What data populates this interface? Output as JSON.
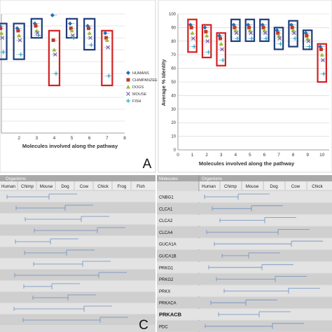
{
  "chart_data": [
    {
      "type": "scatter",
      "panel": "A",
      "xlabel": "Molecules involved along the pathway",
      "ylabel": "",
      "xlim": [
        0,
        8
      ],
      "ylim": [
        0,
        100
      ],
      "grid": true,
      "x_ticks": [
        "2",
        "3",
        "4",
        "5",
        "6",
        "7",
        "8"
      ],
      "legend": [
        "HUMANS",
        "CHIMPANZEE",
        "DOGS",
        "MOUSE",
        "FISH"
      ],
      "legend_placement": "right",
      "boxes": [
        {
          "x": 1,
          "low": 62,
          "high": 92,
          "color": "#1f3b7a"
        },
        {
          "x": 2,
          "low": 62,
          "high": 92,
          "color": "#1f3b7a"
        },
        {
          "x": 3,
          "low": 80,
          "high": 96,
          "color": "#1f3b7a"
        },
        {
          "x": 4,
          "low": 40,
          "high": 86,
          "color": "#d42020"
        },
        {
          "x": 5,
          "low": 80,
          "high": 96,
          "color": "#1f3b7a"
        },
        {
          "x": 6,
          "low": 70,
          "high": 96,
          "color": "#1f3b7a"
        },
        {
          "x": 7,
          "low": 40,
          "high": 86,
          "color": "#d42020"
        }
      ],
      "series": [
        {
          "name": "HUMANS",
          "color": "#1f6fb8",
          "values": [
            [
              1,
              90
            ],
            [
              2,
              88
            ],
            [
              3,
              92
            ],
            [
              4,
              99
            ],
            [
              5,
              92
            ],
            [
              6,
              90
            ],
            [
              7,
              84
            ]
          ]
        },
        {
          "name": "CHIMPANZEE",
          "color": "#c0392b",
          "values": [
            [
              1,
              88
            ],
            [
              2,
              86
            ],
            [
              3,
              90
            ],
            [
              4,
              78
            ],
            [
              5,
              88
            ],
            [
              6,
              88
            ],
            [
              7,
              80
            ]
          ]
        },
        {
          "name": "DOGS",
          "color": "#9bbb3c",
          "values": [
            [
              1,
              84
            ],
            [
              2,
              82
            ],
            [
              3,
              86
            ],
            [
              4,
              70
            ],
            [
              5,
              86
            ],
            [
              6,
              84
            ],
            [
              7,
              78
            ]
          ]
        },
        {
          "name": "MOUSE",
          "color": "#7f62a8",
          "values": [
            [
              1,
              80
            ],
            [
              2,
              78
            ],
            [
              3,
              84
            ],
            [
              4,
              66
            ],
            [
              5,
              82
            ],
            [
              6,
              80
            ],
            [
              7,
              72
            ]
          ]
        },
        {
          "name": "FISH",
          "color": "#31a6c4",
          "values": [
            [
              1,
              68
            ],
            [
              2,
              66
            ],
            [
              3,
              82
            ],
            [
              4,
              50
            ],
            [
              5,
              80
            ],
            [
              6,
              74
            ],
            [
              7,
              48
            ]
          ]
        }
      ],
      "label": "A"
    },
    {
      "type": "scatter",
      "panel": "B",
      "xlabel": "Molecules involved along the pathway",
      "ylabel": "Average % Identity",
      "xlim": [
        0,
        10
      ],
      "ylim": [
        0,
        100
      ],
      "grid": true,
      "y_ticks": [
        "0",
        "10",
        "20",
        "30",
        "40",
        "50",
        "60",
        "70",
        "80",
        "90",
        "100"
      ],
      "x_ticks": [
        "0",
        "1",
        "2",
        "3",
        "4",
        "5",
        "6",
        "7",
        "8",
        "9",
        "10"
      ],
      "boxes": [
        {
          "x": 1,
          "low": 72,
          "high": 96,
          "color": "#d42020"
        },
        {
          "x": 2,
          "low": 68,
          "high": 92,
          "color": "#d42020"
        },
        {
          "x": 3,
          "low": 62,
          "high": 86,
          "color": "#d42020"
        },
        {
          "x": 4,
          "low": 80,
          "high": 96,
          "color": "#1f3b7a"
        },
        {
          "x": 5,
          "low": 80,
          "high": 96,
          "color": "#1f3b7a"
        },
        {
          "x": 6,
          "low": 80,
          "high": 96,
          "color": "#1f3b7a"
        },
        {
          "x": 7,
          "low": 74,
          "high": 90,
          "color": "#1f3b7a"
        },
        {
          "x": 8,
          "low": 76,
          "high": 95,
          "color": "#1f3b7a"
        },
        {
          "x": 9,
          "low": 74,
          "high": 88,
          "color": "#1f3b7a"
        },
        {
          "x": 10,
          "low": 50,
          "high": 78,
          "color": "#d42020"
        }
      ],
      "series": [
        {
          "name": "HUMANS",
          "color": "#1f6fb8",
          "values": [
            [
              1,
              92
            ],
            [
              2,
              90
            ],
            [
              3,
              84
            ],
            [
              4,
              92
            ],
            [
              5,
              92
            ],
            [
              6,
              92
            ],
            [
              7,
              88
            ],
            [
              8,
              92
            ],
            [
              9,
              86
            ],
            [
              10,
              76
            ]
          ]
        },
        {
          "name": "CHIMPANZEE",
          "color": "#c0392b",
          "values": [
            [
              1,
              90
            ],
            [
              2,
              87
            ],
            [
              3,
              82
            ],
            [
              4,
              90
            ],
            [
              5,
              90
            ],
            [
              6,
              90
            ],
            [
              7,
              86
            ],
            [
              8,
              90
            ],
            [
              9,
              84
            ],
            [
              10,
              74
            ]
          ]
        },
        {
          "name": "DOGS",
          "color": "#9bbb3c",
          "values": [
            [
              1,
              86
            ],
            [
              2,
              84
            ],
            [
              3,
              78
            ],
            [
              4,
              88
            ],
            [
              5,
              88
            ],
            [
              6,
              88
            ],
            [
              7,
              84
            ],
            [
              8,
              88
            ],
            [
              9,
              82
            ],
            [
              10,
              70
            ]
          ]
        },
        {
          "name": "MOUSE",
          "color": "#7f62a8",
          "values": [
            [
              1,
              82
            ],
            [
              2,
              80
            ],
            [
              3,
              74
            ],
            [
              4,
              86
            ],
            [
              5,
              86
            ],
            [
              6,
              86
            ],
            [
              7,
              82
            ],
            [
              8,
              86
            ],
            [
              9,
              80
            ],
            [
              10,
              66
            ]
          ]
        },
        {
          "name": "FISH",
          "color": "#31a6c4",
          "values": [
            [
              1,
              76
            ],
            [
              2,
              72
            ],
            [
              3,
              66
            ],
            [
              4,
              82
            ],
            [
              5,
              82
            ],
            [
              6,
              82
            ],
            [
              7,
              78
            ],
            [
              8,
              82
            ],
            [
              9,
              76
            ],
            [
              10,
              56
            ]
          ]
        }
      ],
      "label": ""
    }
  ],
  "panel_c": {
    "label": "C",
    "header": "Organisms",
    "organisms": [
      "Human",
      "Chimp",
      "Mouse",
      "Dog",
      "Cow",
      "Chick",
      "Frog",
      "Fish"
    ]
  },
  "panel_d": {
    "molecules_header": "Molecules",
    "organisms_header": "Organisms",
    "organisms": [
      "Human",
      "Chimp",
      "Mouse",
      "Dog",
      "Cow",
      "Chick"
    ],
    "molecules": [
      "CNBG1",
      "CLCA1",
      "CLCA2",
      "CLCA4",
      "GUCA1A",
      "GUCA1B",
      "PRKG1",
      "PRKG2",
      "PRKX",
      "PRKACA",
      "PRKACB",
      "PDC"
    ]
  }
}
